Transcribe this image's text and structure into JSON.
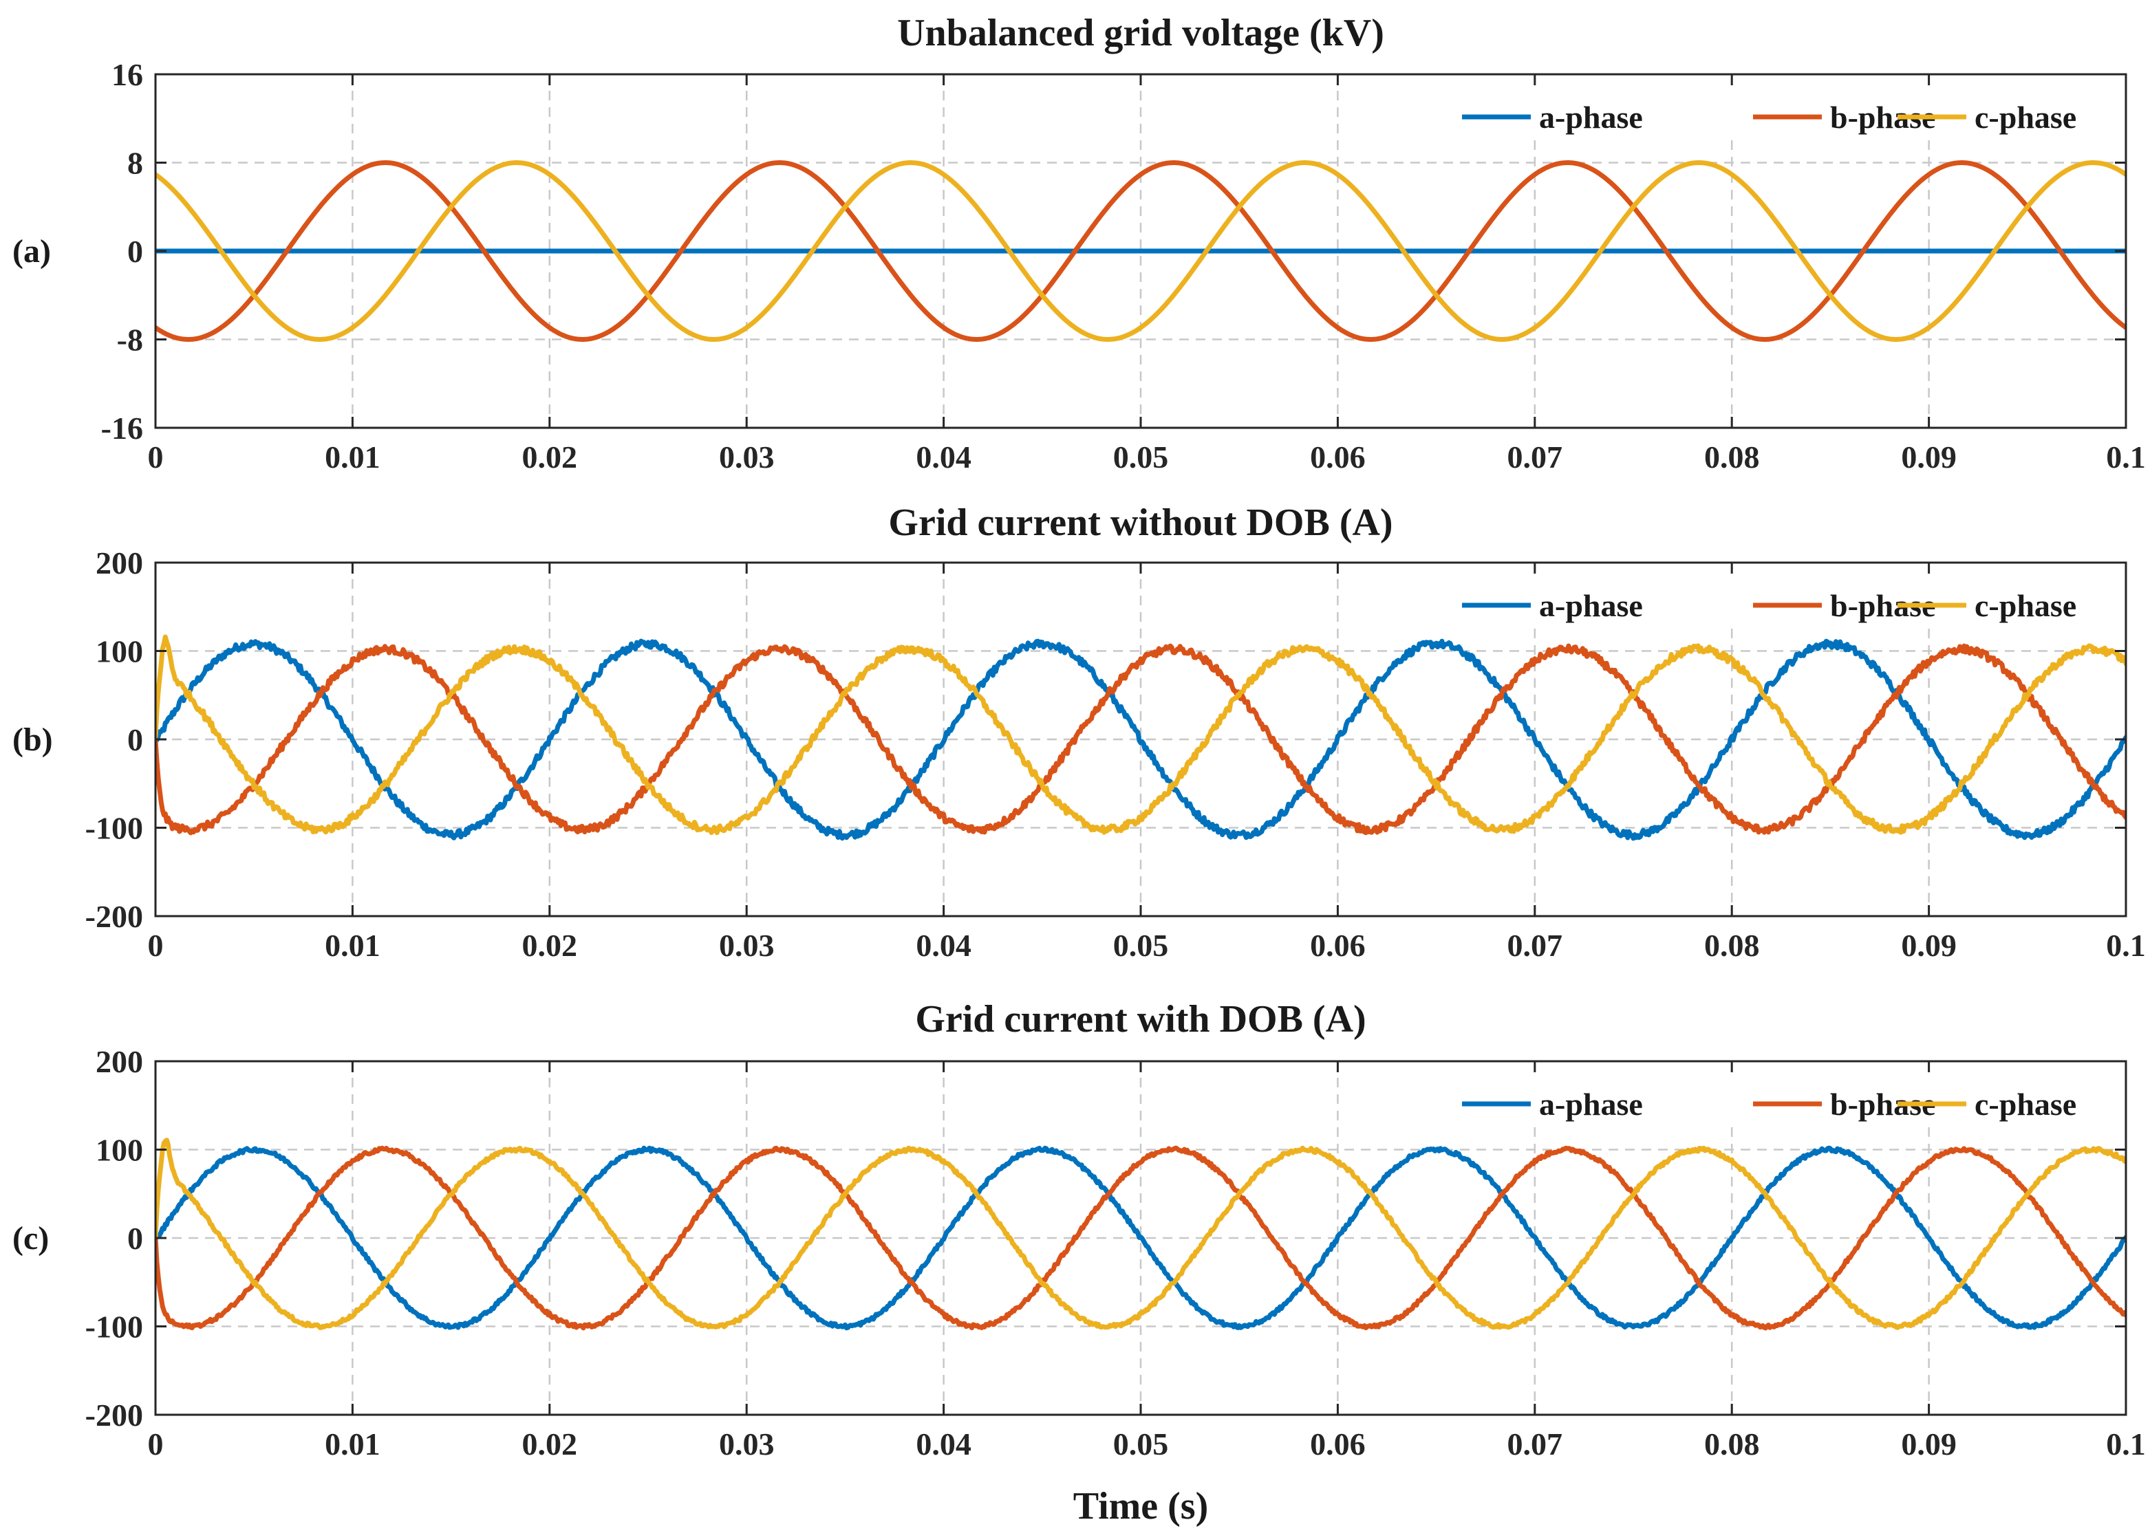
{
  "figure": {
    "x_axis_label": "Time (s)"
  },
  "chart_data": [
    {
      "type": "line",
      "panel_label": "(a)",
      "title": "Unbalanced grid voltage (kV)",
      "xlim": [
        0,
        0.1
      ],
      "ylim": [
        -16,
        16
      ],
      "x_ticks": [
        0,
        0.01,
        0.02,
        0.03,
        0.04,
        0.05,
        0.06,
        0.07,
        0.08,
        0.09,
        0.1
      ],
      "x_tick_labels": [
        "0",
        "0.01",
        "0.02",
        "0.03",
        "0.04",
        "0.05",
        "0.06",
        "0.07",
        "0.08",
        "0.09",
        "0.1"
      ],
      "y_ticks": [
        -16,
        -8,
        0,
        8,
        16
      ],
      "y_tick_labels": [
        "-16",
        "-8",
        "0",
        "8",
        "16"
      ],
      "grid": true,
      "legend_position": "top-right",
      "frequency_hz": 50,
      "series": [
        {
          "name": "a-phase",
          "color": "#0072BD",
          "amplitude": 0,
          "phase_deg": 0
        },
        {
          "name": "b-phase",
          "color": "#D95319",
          "amplitude": 8,
          "phase_deg": -120
        },
        {
          "name": "c-phase",
          "color": "#EDB120",
          "amplitude": 8,
          "phase_deg": 120
        }
      ]
    },
    {
      "type": "line",
      "panel_label": "(b)",
      "title": "Grid current without DOB (A)",
      "xlim": [
        0,
        0.1
      ],
      "ylim": [
        -200,
        200
      ],
      "x_ticks": [
        0,
        0.01,
        0.02,
        0.03,
        0.04,
        0.05,
        0.06,
        0.07,
        0.08,
        0.09,
        0.1
      ],
      "x_tick_labels": [
        "0",
        "0.01",
        "0.02",
        "0.03",
        "0.04",
        "0.05",
        "0.06",
        "0.07",
        "0.08",
        "0.09",
        "0.1"
      ],
      "y_ticks": [
        -200,
        -100,
        0,
        100,
        200
      ],
      "y_tick_labels": [
        "-200",
        "-100",
        "0",
        "100",
        "200"
      ],
      "grid": true,
      "legend_position": "top-right",
      "frequency_hz": 50,
      "noise_amplitude": 4,
      "series": [
        {
          "name": "a-phase",
          "color": "#0072BD",
          "amplitude": 108,
          "phase_deg": 0
        },
        {
          "name": "b-phase",
          "color": "#D95319",
          "amplitude": 102,
          "phase_deg": -120
        },
        {
          "name": "c-phase",
          "color": "#EDB120",
          "amplitude": 102,
          "phase_deg": 120
        }
      ]
    },
    {
      "type": "line",
      "panel_label": "(c)",
      "title": "Grid current with DOB (A)",
      "xlim": [
        0,
        0.1
      ],
      "ylim": [
        -200,
        200
      ],
      "x_ticks": [
        0,
        0.01,
        0.02,
        0.03,
        0.04,
        0.05,
        0.06,
        0.07,
        0.08,
        0.09,
        0.1
      ],
      "x_tick_labels": [
        "0",
        "0.01",
        "0.02",
        "0.03",
        "0.04",
        "0.05",
        "0.06",
        "0.07",
        "0.08",
        "0.09",
        "0.1"
      ],
      "y_ticks": [
        -200,
        -100,
        0,
        100,
        200
      ],
      "y_tick_labels": [
        "-200",
        "-100",
        "0",
        "100",
        "200"
      ],
      "grid": true,
      "legend_position": "top-right",
      "frequency_hz": 50,
      "noise_amplitude": 2,
      "series": [
        {
          "name": "a-phase",
          "color": "#0072BD",
          "amplitude": 100,
          "phase_deg": 0
        },
        {
          "name": "b-phase",
          "color": "#D95319",
          "amplitude": 100,
          "phase_deg": -120
        },
        {
          "name": "c-phase",
          "color": "#EDB120",
          "amplitude": 100,
          "phase_deg": 120
        }
      ]
    }
  ]
}
